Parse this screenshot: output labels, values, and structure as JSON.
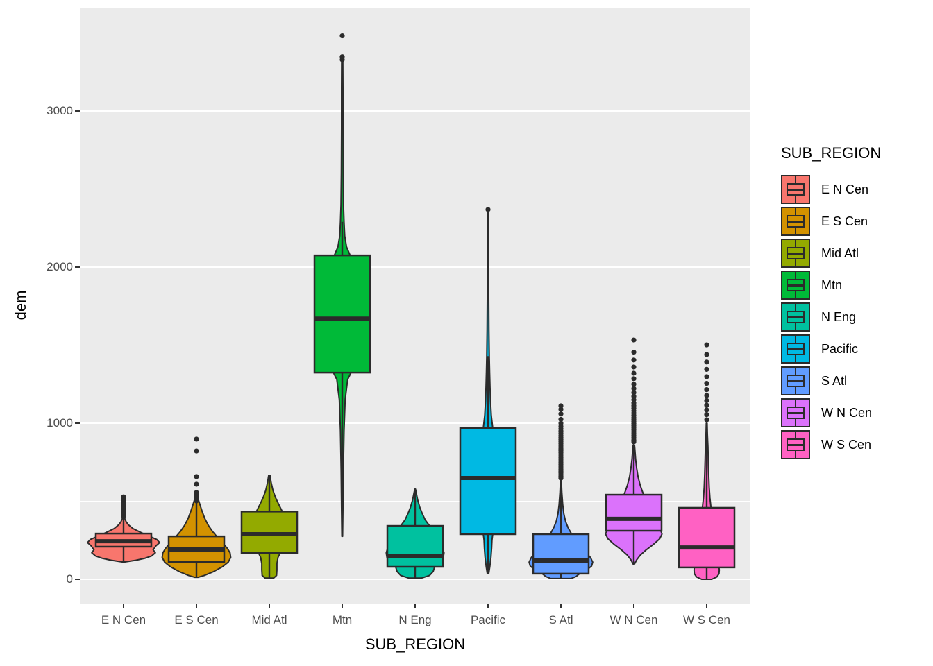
{
  "window": {
    "background": "#FFFFFF"
  },
  "panel": {
    "background": "#EBEBEB",
    "grid_color": "#FFFFFF",
    "tick_color": "#333333",
    "outline_color": "#2B2B2B",
    "axis_text_color": "#4D4D4D"
  },
  "x_axis": {
    "title": "SUB_REGION",
    "tick_labels": [
      "E N Cen",
      "E S Cen",
      "Mid Atl",
      "Mtn",
      "N Eng",
      "Pacific",
      "S Atl",
      "W N Cen",
      "W S Cen"
    ]
  },
  "y_axis": {
    "title": "dem",
    "tick_labels": [
      "0",
      "1000",
      "2000",
      "3000"
    ],
    "tick_values": [
      0,
      1000,
      2000,
      3000
    ],
    "minor_tick_values": [
      500,
      1500,
      2500,
      3500
    ]
  },
  "legend": {
    "title": "SUB_REGION",
    "entries": [
      {
        "label": "E N Cen",
        "color": "#F8766D"
      },
      {
        "label": "E S Cen",
        "color": "#D39200"
      },
      {
        "label": "Mid Atl",
        "color": "#93AA00"
      },
      {
        "label": "Mtn",
        "color": "#00BA38"
      },
      {
        "label": "N Eng",
        "color": "#00C19F"
      },
      {
        "label": "Pacific",
        "color": "#00B9E3"
      },
      {
        "label": "S Atl",
        "color": "#619CFF"
      },
      {
        "label": "W N Cen",
        "color": "#DB72FB"
      },
      {
        "label": "W S Cen",
        "color": "#FF61C3"
      }
    ]
  },
  "chart_data": {
    "type": "violin+boxplot",
    "title": "",
    "xlabel": "SUB_REGION",
    "ylabel": "dem",
    "ylim": [
      -160,
      3670
    ],
    "grid": true,
    "legend_position": "right",
    "categories": [
      "E N Cen",
      "E S Cen",
      "Mid Atl",
      "Mtn",
      "N Eng",
      "Pacific",
      "S Atl",
      "W N Cen",
      "W S Cen"
    ],
    "series": [
      {
        "name": "E N Cen",
        "color": "#F8766D",
        "box": {
          "q1": 209,
          "median": 244,
          "q3": 293
        },
        "whiskers": [
          111,
          391
        ],
        "outliers": [
          405,
          414,
          423,
          432,
          441,
          450,
          459,
          468,
          477,
          486,
          495,
          505,
          516,
          528
        ],
        "violin_profile": [
          [
            111,
            0.04
          ],
          [
            122,
            0.35
          ],
          [
            135,
            0.6
          ],
          [
            150,
            0.78
          ],
          [
            170,
            0.88
          ],
          [
            190,
            0.82
          ],
          [
            215,
            0.9
          ],
          [
            235,
            1.0
          ],
          [
            255,
            0.92
          ],
          [
            275,
            0.72
          ],
          [
            300,
            0.48
          ],
          [
            325,
            0.26
          ],
          [
            350,
            0.13
          ],
          [
            370,
            0.07
          ],
          [
            391,
            0.03
          ]
        ]
      },
      {
        "name": "E S Cen",
        "color": "#D39200",
        "box": {
          "q1": 111,
          "median": 191,
          "q3": 275
        },
        "whiskers": [
          13,
          520
        ],
        "outliers": [
          502,
          510,
          518,
          526,
          534,
          543,
          556,
          609,
          658,
          822,
          898
        ],
        "violin_profile": [
          [
            13,
            0.05
          ],
          [
            25,
            0.22
          ],
          [
            50,
            0.48
          ],
          [
            80,
            0.72
          ],
          [
            110,
            0.88
          ],
          [
            140,
            0.95
          ],
          [
            170,
            0.93
          ],
          [
            200,
            0.85
          ],
          [
            235,
            0.72
          ],
          [
            270,
            0.58
          ],
          [
            305,
            0.45
          ],
          [
            345,
            0.33
          ],
          [
            390,
            0.23
          ],
          [
            440,
            0.15
          ],
          [
            490,
            0.08
          ],
          [
            520,
            0.04
          ]
        ]
      },
      {
        "name": "Mid Atl",
        "color": "#93AA00",
        "box": {
          "q1": 169,
          "median": 289,
          "q3": 434
        },
        "whiskers": [
          8,
          665
        ],
        "outliers": [],
        "violin_profile": [
          [
            8,
            0.12
          ],
          [
            25,
            0.2
          ],
          [
            60,
            0.21
          ],
          [
            100,
            0.21
          ],
          [
            140,
            0.24
          ],
          [
            169,
            0.3
          ],
          [
            200,
            0.5
          ],
          [
            235,
            0.65
          ],
          [
            270,
            0.72
          ],
          [
            300,
            0.72
          ],
          [
            340,
            0.63
          ],
          [
            380,
            0.5
          ],
          [
            434,
            0.36
          ],
          [
            480,
            0.26
          ],
          [
            525,
            0.17
          ],
          [
            570,
            0.1
          ],
          [
            620,
            0.05
          ],
          [
            665,
            0.02
          ]
        ]
      },
      {
        "name": "Mtn",
        "color": "#00BA38",
        "box": {
          "q1": 1324,
          "median": 1670,
          "q3": 2075
        },
        "whiskers": [
          275,
          2290
        ],
        "outliers": [
          3329,
          3348,
          3482
        ],
        "violin_profile": [
          [
            275,
            0.01
          ],
          [
            450,
            0.02
          ],
          [
            700,
            0.03
          ],
          [
            950,
            0.05
          ],
          [
            1150,
            0.08
          ],
          [
            1280,
            0.15
          ],
          [
            1350,
            0.3
          ],
          [
            1450,
            0.45
          ],
          [
            1550,
            0.55
          ],
          [
            1670,
            0.58
          ],
          [
            1780,
            0.55
          ],
          [
            1900,
            0.48
          ],
          [
            2000,
            0.35
          ],
          [
            2075,
            0.22
          ],
          [
            2130,
            0.12
          ],
          [
            2200,
            0.07
          ],
          [
            2290,
            0.05
          ],
          [
            2400,
            0.035
          ],
          [
            2600,
            0.025
          ],
          [
            2900,
            0.02
          ],
          [
            3150,
            0.02
          ],
          [
            3329,
            0.015
          ]
        ]
      },
      {
        "name": "N Eng",
        "color": "#00C19F",
        "box": {
          "q1": 80,
          "median": 151,
          "q3": 342
        },
        "whiskers": [
          8,
          578
        ],
        "outliers": [],
        "violin_profile": [
          [
            8,
            0.18
          ],
          [
            25,
            0.4
          ],
          [
            50,
            0.5
          ],
          [
            80,
            0.54
          ],
          [
            110,
            0.68
          ],
          [
            140,
            0.78
          ],
          [
            170,
            0.8
          ],
          [
            210,
            0.75
          ],
          [
            250,
            0.68
          ],
          [
            295,
            0.55
          ],
          [
            342,
            0.4
          ],
          [
            380,
            0.28
          ],
          [
            420,
            0.2
          ],
          [
            460,
            0.13
          ],
          [
            510,
            0.07
          ],
          [
            578,
            0.01
          ]
        ]
      },
      {
        "name": "Pacific",
        "color": "#00B9E3",
        "box": {
          "q1": 289,
          "median": 649,
          "q3": 969
        },
        "whiskers": [
          36,
          1430
        ],
        "outliers": [
          2369
        ],
        "violin_profile": [
          [
            36,
            0.02
          ],
          [
            80,
            0.05
          ],
          [
            140,
            0.08
          ],
          [
            200,
            0.1
          ],
          [
            250,
            0.11
          ],
          [
            289,
            0.13
          ],
          [
            380,
            0.2
          ],
          [
            470,
            0.28
          ],
          [
            560,
            0.33
          ],
          [
            649,
            0.35
          ],
          [
            740,
            0.32
          ],
          [
            830,
            0.26
          ],
          [
            900,
            0.2
          ],
          [
            969,
            0.13
          ],
          [
            1050,
            0.09
          ],
          [
            1140,
            0.07
          ],
          [
            1230,
            0.055
          ],
          [
            1330,
            0.045
          ],
          [
            1430,
            0.035
          ],
          [
            1600,
            0.025
          ],
          [
            1800,
            0.02
          ],
          [
            2000,
            0.015
          ],
          [
            2180,
            0.012
          ],
          [
            2360,
            0.01
          ]
        ]
      },
      {
        "name": "S Atl",
        "color": "#619CFF",
        "box": {
          "q1": 36,
          "median": 120,
          "q3": 289
        },
        "whiskers": [
          5,
          640
        ],
        "outliers": [
          648,
          659,
          670,
          681,
          692,
          703,
          714,
          725,
          736,
          747,
          758,
          769,
          780,
          791,
          802,
          813,
          824,
          835,
          846,
          858,
          870,
          882,
          895,
          908,
          922,
          936,
          950,
          965,
          980,
          1000,
          1025,
          1060,
          1089,
          1111
        ],
        "violin_profile": [
          [
            5,
            0.28
          ],
          [
            18,
            0.42
          ],
          [
            36,
            0.52
          ],
          [
            60,
            0.72
          ],
          [
            85,
            0.85
          ],
          [
            110,
            0.88
          ],
          [
            140,
            0.82
          ],
          [
            175,
            0.68
          ],
          [
            210,
            0.55
          ],
          [
            250,
            0.42
          ],
          [
            289,
            0.3
          ],
          [
            330,
            0.2
          ],
          [
            370,
            0.13
          ],
          [
            420,
            0.08
          ],
          [
            480,
            0.05
          ],
          [
            560,
            0.025
          ],
          [
            640,
            0.012
          ]
        ]
      },
      {
        "name": "W N Cen",
        "color": "#DB72FB",
        "box": {
          "q1": 311,
          "median": 387,
          "q3": 542
        },
        "whiskers": [
          98,
          860
        ],
        "outliers": [
          880,
          893,
          906,
          919,
          932,
          945,
          958,
          971,
          984,
          997,
          1010,
          1023,
          1036,
          1050,
          1065,
          1080,
          1095,
          1112,
          1130,
          1150,
          1172,
          1196,
          1222,
          1250,
          1285,
          1320,
          1360,
          1405,
          1455,
          1533
        ],
        "violin_profile": [
          [
            98,
            0.02
          ],
          [
            125,
            0.08
          ],
          [
            155,
            0.18
          ],
          [
            190,
            0.35
          ],
          [
            225,
            0.55
          ],
          [
            260,
            0.72
          ],
          [
            290,
            0.78
          ],
          [
            311,
            0.75
          ],
          [
            345,
            0.62
          ],
          [
            387,
            0.55
          ],
          [
            430,
            0.48
          ],
          [
            480,
            0.38
          ],
          [
            542,
            0.27
          ],
          [
            600,
            0.18
          ],
          [
            655,
            0.12
          ],
          [
            710,
            0.08
          ],
          [
            770,
            0.05
          ],
          [
            830,
            0.03
          ],
          [
            860,
            0.02
          ]
        ]
      },
      {
        "name": "W S Cen",
        "color": "#FF61C3",
        "box": {
          "q1": 76,
          "median": 204,
          "q3": 458
        },
        "whiskers": [
          0,
          1000
        ],
        "outliers": [
          1022,
          1055,
          1085,
          1115,
          1145,
          1178,
          1215,
          1255,
          1298,
          1345,
          1392,
          1440,
          1502
        ],
        "violin_profile": [
          [
            0,
            0.14
          ],
          [
            15,
            0.28
          ],
          [
            35,
            0.34
          ],
          [
            60,
            0.35
          ],
          [
            76,
            0.34
          ],
          [
            110,
            0.3
          ],
          [
            150,
            0.28
          ],
          [
            204,
            0.3
          ],
          [
            250,
            0.29
          ],
          [
            300,
            0.24
          ],
          [
            350,
            0.2
          ],
          [
            400,
            0.16
          ],
          [
            458,
            0.12
          ],
          [
            520,
            0.09
          ],
          [
            590,
            0.07
          ],
          [
            670,
            0.055
          ],
          [
            760,
            0.045
          ],
          [
            850,
            0.035
          ],
          [
            930,
            0.02
          ],
          [
            1000,
            0.012
          ]
        ]
      }
    ]
  }
}
